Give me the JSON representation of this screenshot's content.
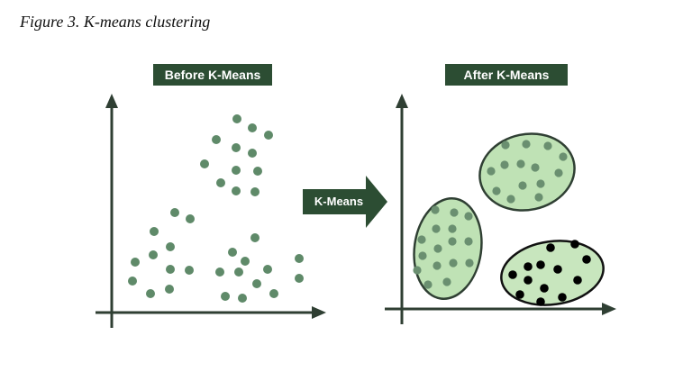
{
  "figure": {
    "caption": "Figure 3. K-means clustering"
  },
  "before_panel": {
    "label": "Before K-Means"
  },
  "after_panel": {
    "label": "After K-Means"
  },
  "transition": {
    "label": "K-Means"
  },
  "colors": {
    "label_bg": "#2c4d33",
    "axis": "#2f3f33",
    "point": "#5f8a69",
    "cluster_fill": "#bfe2b5",
    "cluster_stroke": "#2f3f33",
    "cluster_point_light": "#6a8f70",
    "cluster_point_dark": "#000000",
    "black_cluster_fill": "#c8e6be"
  },
  "clusters": [
    {
      "name": "left-cluster",
      "point_style": "light"
    },
    {
      "name": "top-cluster",
      "point_style": "light"
    },
    {
      "name": "bottom-right-cluster",
      "point_style": "dark"
    }
  ]
}
